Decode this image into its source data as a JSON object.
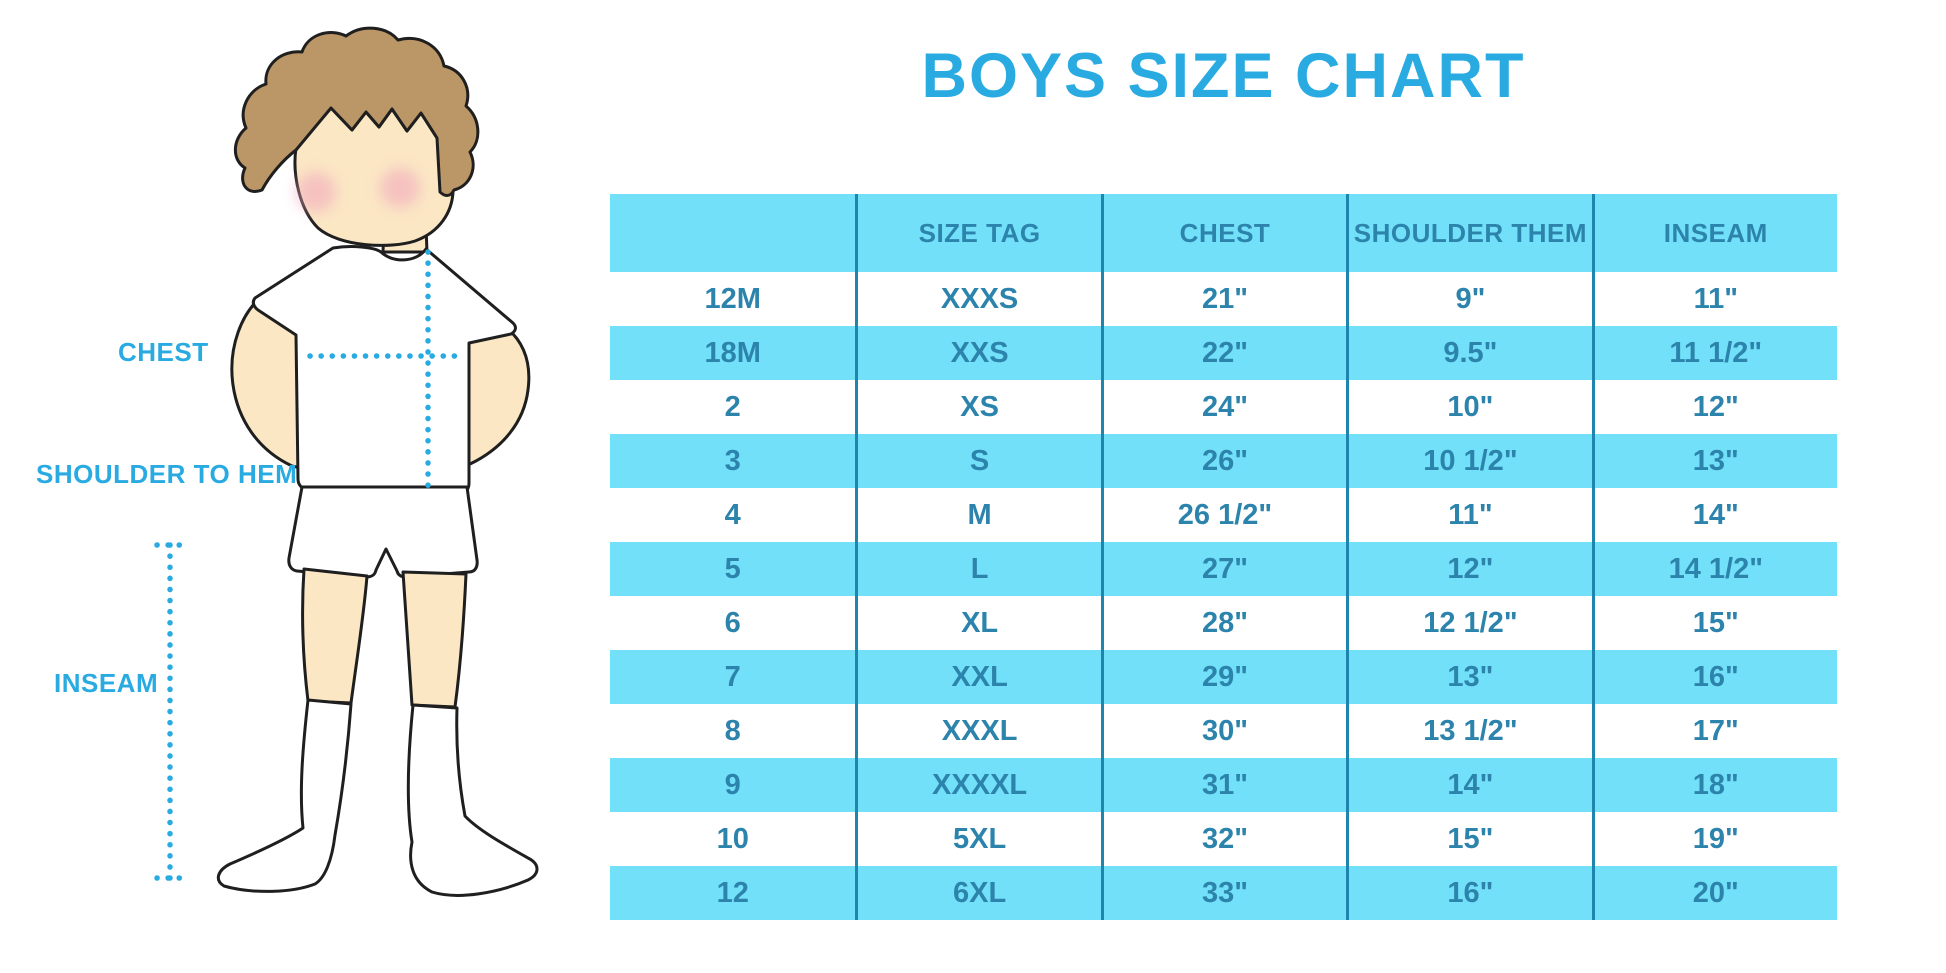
{
  "colors": {
    "accent": "#29ABE2",
    "row_fill": "#72E0F8",
    "cell_text": "#2C84AC",
    "divider": "#1E85AE",
    "hair": "#BB9666",
    "skin": "#FBE7C4",
    "blush": "#F2A9BE",
    "outline": "#1F1F1F"
  },
  "figure_labels": {
    "chest": "CHEST",
    "shoulder_to_hem": "SHOULDER TO HEM",
    "inseam": "INSEAM"
  },
  "chart_data": {
    "type": "table",
    "title": "BOYS SIZE CHART",
    "columns": [
      "",
      "SIZE TAG",
      "CHEST",
      "SHOULDER THEM",
      "INSEAM"
    ],
    "rows": [
      [
        "12M",
        "XXXS",
        "21\"",
        "9\"",
        "11\""
      ],
      [
        "18M",
        "XXS",
        "22\"",
        "9.5\"",
        "11 1/2\""
      ],
      [
        "2",
        "XS",
        "24\"",
        "10\"",
        "12\""
      ],
      [
        "3",
        "S",
        "26\"",
        "10 1/2\"",
        "13\""
      ],
      [
        "4",
        "M",
        "26 1/2\"",
        "11\"",
        "14\""
      ],
      [
        "5",
        "L",
        "27\"",
        "12\"",
        "14 1/2\""
      ],
      [
        "6",
        "XL",
        "28\"",
        "12 1/2\"",
        "15\""
      ],
      [
        "7",
        "XXL",
        "29\"",
        "13\"",
        "16\""
      ],
      [
        "8",
        "XXXL",
        "30\"",
        "13 1/2\"",
        "17\""
      ],
      [
        "9",
        "XXXXL",
        "31\"",
        "14\"",
        "18\""
      ],
      [
        "10",
        "5XL",
        "32\"",
        "15\"",
        "19\""
      ],
      [
        "12",
        "6XL",
        "33\"",
        "16\"",
        "20\""
      ]
    ]
  }
}
